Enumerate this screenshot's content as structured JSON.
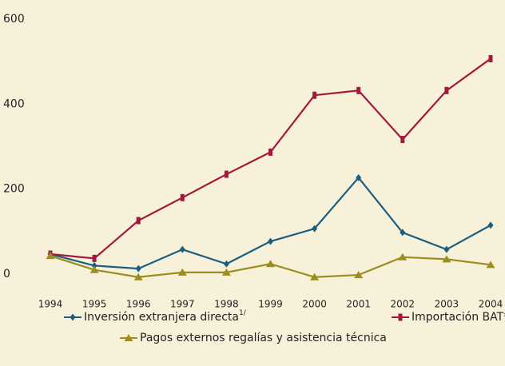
{
  "chart_data": {
    "type": "line",
    "categories": [
      "1994",
      "1995",
      "1996",
      "1997",
      "1998",
      "1999",
      "2000",
      "2001",
      "2002",
      "2003",
      "2004"
    ],
    "series": [
      {
        "name": "Inversión extranjera directa",
        "name_note": "1/",
        "color": "#1b5f80",
        "marker": "diamond",
        "values": [
          47,
          20,
          13,
          58,
          24,
          77,
          107,
          227,
          98,
          58,
          115
        ]
      },
      {
        "name": "Importación BAT*",
        "color": "#a3183c",
        "marker": "bar",
        "values": [
          47,
          37,
          126,
          180,
          235,
          287,
          421,
          432,
          317,
          432,
          507
        ]
      },
      {
        "name": "Pagos externos regalías y asistencia  técnica",
        "color": "#9c8d1c",
        "marker": "triangle",
        "values": [
          43,
          10,
          -7,
          4,
          4,
          24,
          -7,
          -2,
          40,
          35,
          22
        ]
      }
    ],
    "ylim": [
      -50,
      600
    ],
    "yticks": [
      0,
      200,
      400,
      600
    ],
    "grid": false
  }
}
